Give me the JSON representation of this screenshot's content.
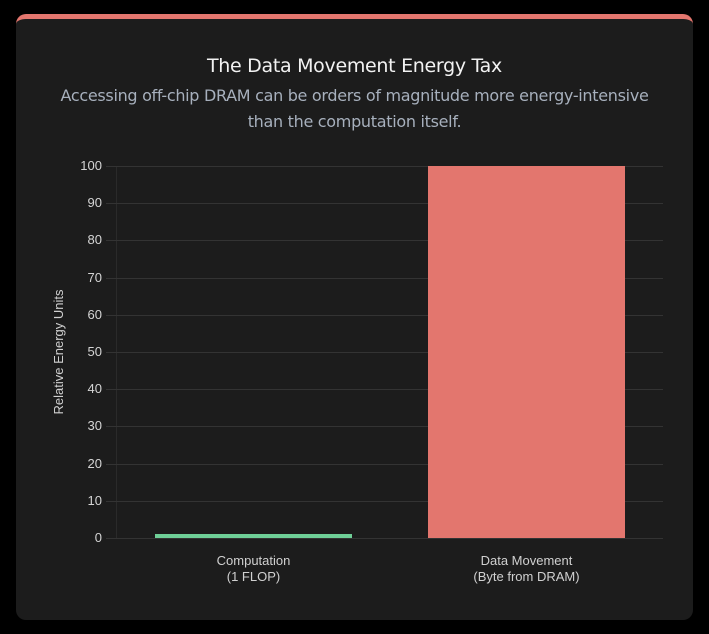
{
  "card": {
    "title": "The Data Movement Energy Tax",
    "subtitle": "Accessing off-chip DRAM can be orders of magnitude more energy-intensive than the computation itself.",
    "accent_color": "#e3766e"
  },
  "chart_data": {
    "type": "bar",
    "title": "The Data Movement Energy Tax",
    "subtitle": "Accessing off-chip DRAM can be orders of magnitude more energy-intensive than the computation itself.",
    "categories": [
      "Computation\n(1 FLOP)",
      "Data Movement\n(Byte from DRAM)"
    ],
    "category_lines": [
      [
        "Computation",
        "(1 FLOP)"
      ],
      [
        "Data Movement",
        "(Byte from DRAM)"
      ]
    ],
    "values": [
      1,
      100
    ],
    "colors": [
      "#6fcf97",
      "#e3766e"
    ],
    "xlabel": "",
    "ylabel": "Relative Energy Units",
    "ylim": [
      0,
      100
    ],
    "yticks": [
      0,
      10,
      20,
      30,
      40,
      50,
      60,
      70,
      80,
      90,
      100
    ],
    "grid": true,
    "legend": false
  }
}
